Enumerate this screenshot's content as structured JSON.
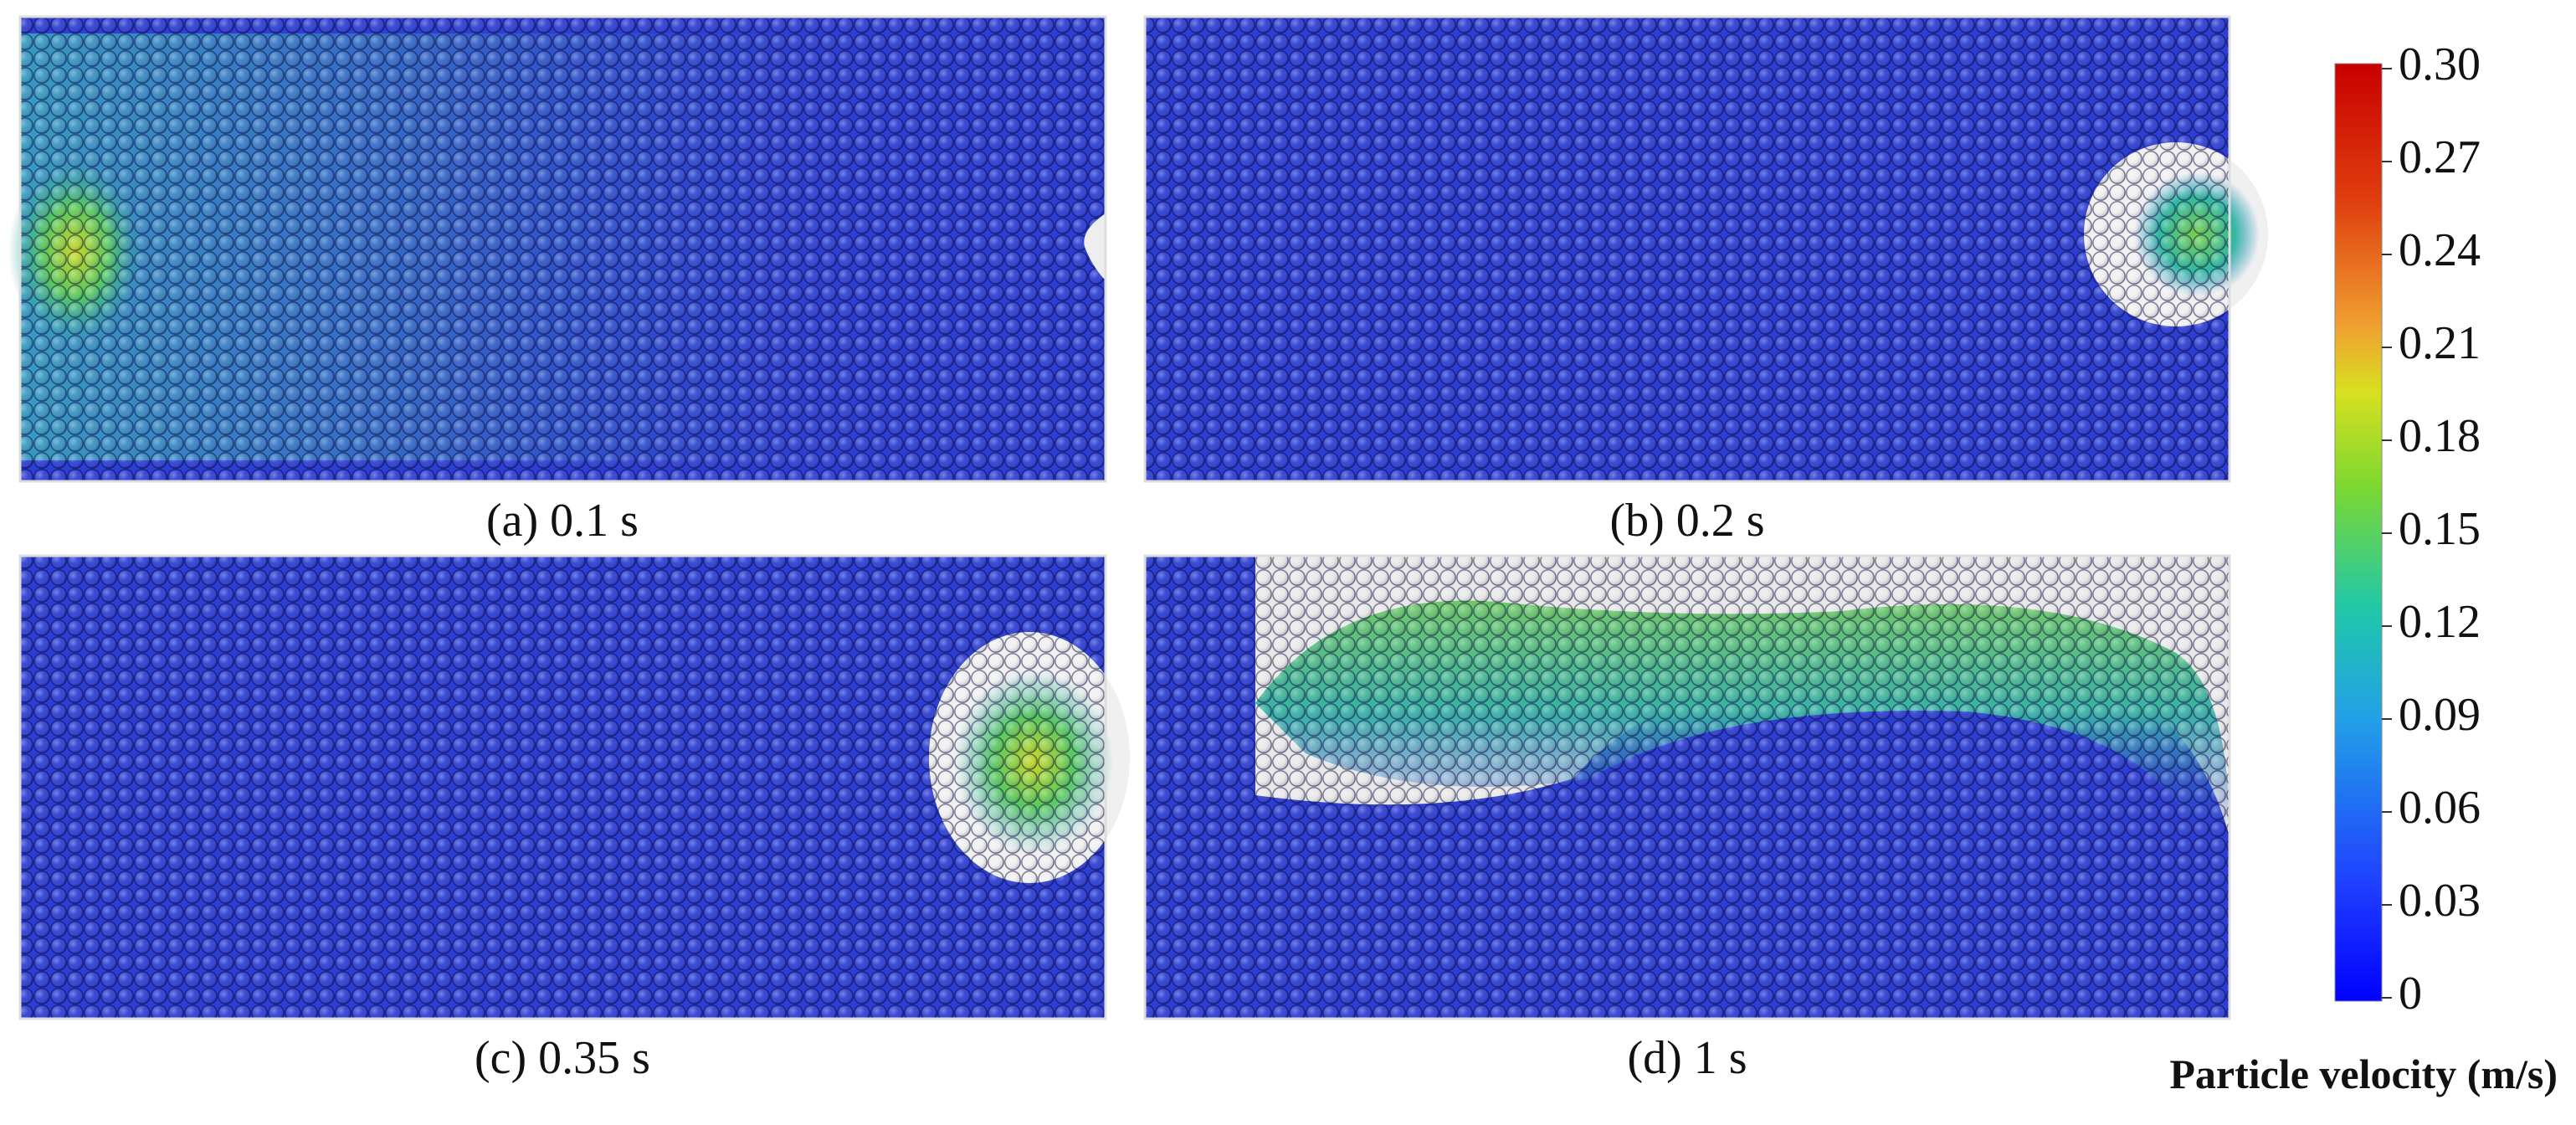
{
  "panels": [
    {
      "caption": "(a) 0.1 s"
    },
    {
      "caption": "(b) 0.2 s"
    },
    {
      "caption": "(c) 0.35 s"
    },
    {
      "caption": "(d) 1 s"
    }
  ],
  "colorbar": {
    "label": "Particle velocity (m/s)",
    "range": [
      0,
      0.3
    ],
    "ticks": [
      0,
      0.03,
      0.06,
      0.09,
      0.12,
      0.15,
      0.18,
      0.21,
      0.24,
      0.27,
      {
        "value": 0.3,
        "label": "0.30"
      }
    ]
  }
}
